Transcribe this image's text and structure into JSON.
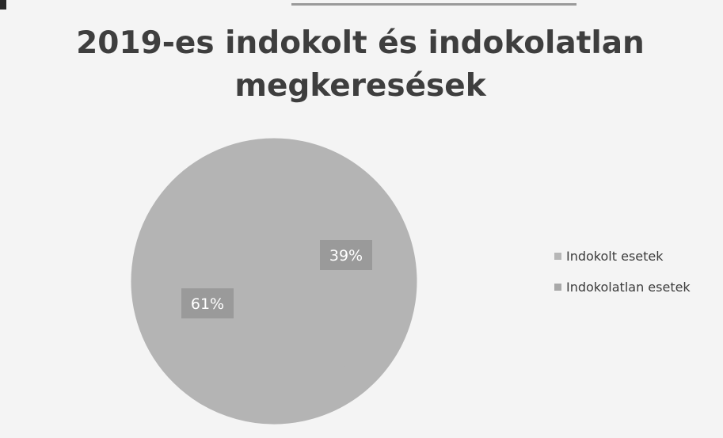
{
  "chart_data": {
    "type": "pie",
    "title": "2019-es indokolt és indokolatlan megkeresések",
    "legend_position": "right",
    "series": [
      {
        "name": "Indokolt esetek",
        "value": 39,
        "label": "39%",
        "color": "#b7b7b7"
      },
      {
        "name": "Indokolatlan esetek",
        "value": 61,
        "label": "61%",
        "color": "#a8a8a8"
      }
    ],
    "label_box_color": "#9a9a9a",
    "slice_color": "#b4b4b4"
  }
}
